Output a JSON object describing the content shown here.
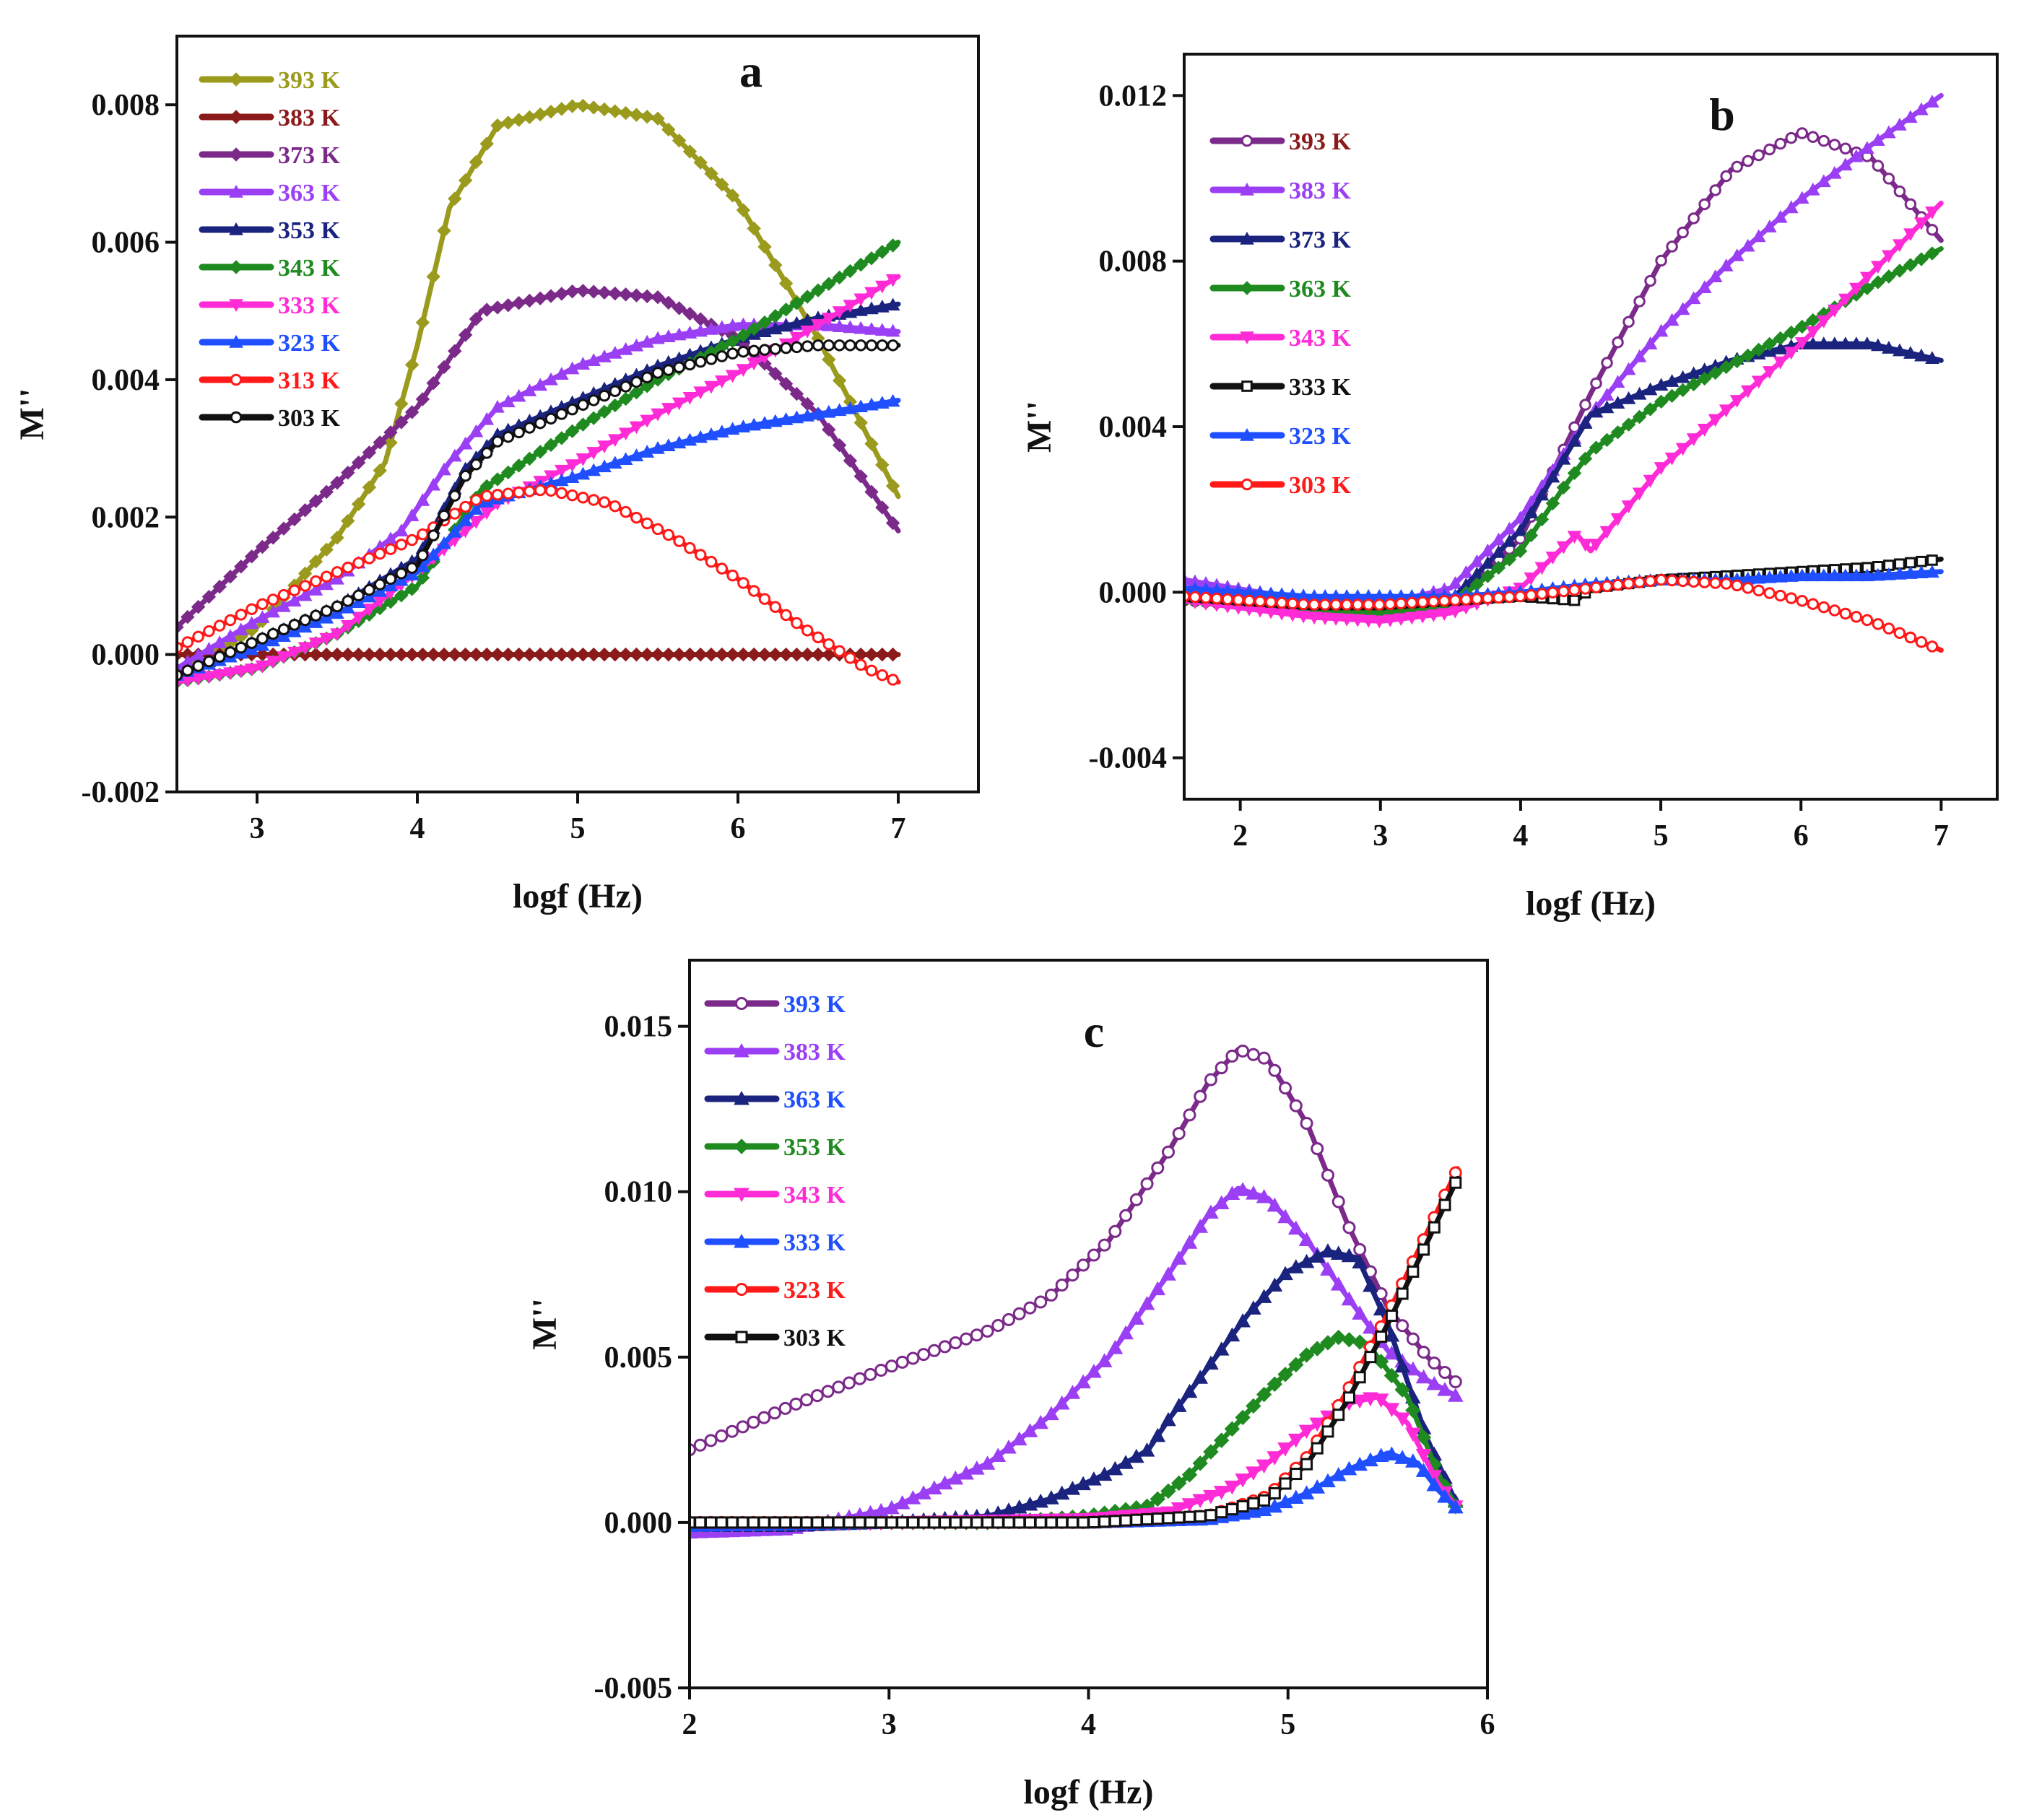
{
  "chart_data": [
    {
      "type": "line",
      "panel_label": "a",
      "xlabel": "logf (Hz)",
      "ylabel": "M''",
      "xlim": [
        2.5,
        7.5
      ],
      "ylim": [
        -0.002,
        0.009
      ],
      "x_ticks": [
        3,
        4,
        5,
        6,
        7
      ],
      "x_tick_labels": [
        "3",
        "4",
        "5",
        "6",
        "7"
      ],
      "y_ticks": [
        -0.002,
        0.0,
        0.002,
        0.004,
        0.006,
        0.008
      ],
      "y_tick_labels": [
        "-0.002",
        "0.000",
        "0.002",
        "0.004",
        "0.006",
        "0.008"
      ],
      "legend_position": "top-left",
      "series": [
        {
          "name": "393 K",
          "color": "#9a9a1c",
          "marker": "diamond",
          "x": [
            2.5,
            3.0,
            3.5,
            3.8,
            4.0,
            4.2,
            4.5,
            5.0,
            5.5,
            6.0,
            6.5,
            7.0
          ],
          "y": [
            -0.0003,
            0.0004,
            0.0017,
            0.0028,
            0.0045,
            0.0065,
            0.0077,
            0.008,
            0.0078,
            0.0066,
            0.0046,
            0.0023
          ]
        },
        {
          "name": "383 K",
          "color": "#8b1a1a",
          "marker": "diamond",
          "x": [
            2.5,
            3.0,
            4.0,
            5.0,
            6.0,
            7.0
          ],
          "y": [
            0.0,
            0.0,
            0.0,
            0.0,
            0.0,
            0.0
          ]
        },
        {
          "name": "373 K",
          "color": "#7b2a8a",
          "marker": "diamond",
          "x": [
            2.5,
            3.0,
            3.5,
            4.0,
            4.4,
            5.0,
            5.5,
            6.0,
            6.5,
            7.0
          ],
          "y": [
            0.0004,
            0.0015,
            0.0025,
            0.0036,
            0.005,
            0.0053,
            0.0052,
            0.0046,
            0.0035,
            0.0018
          ]
        },
        {
          "name": "363 K",
          "color": "#9b3ff5",
          "marker": "triangle",
          "x": [
            2.5,
            3.0,
            3.5,
            3.9,
            4.2,
            4.5,
            5.0,
            5.5,
            6.0,
            6.5,
            7.0
          ],
          "y": [
            -0.0002,
            0.0005,
            0.0011,
            0.0018,
            0.0028,
            0.0036,
            0.0042,
            0.0046,
            0.0048,
            0.0048,
            0.0047
          ]
        },
        {
          "name": "353 K",
          "color": "#1a237e",
          "marker": "triangle",
          "x": [
            2.5,
            3.0,
            3.5,
            4.0,
            4.3,
            4.5,
            5.0,
            5.5,
            6.0,
            6.5,
            7.0
          ],
          "y": [
            -0.0003,
            0.0002,
            0.0007,
            0.0014,
            0.0027,
            0.0032,
            0.0037,
            0.0042,
            0.0046,
            0.0049,
            0.0051
          ]
        },
        {
          "name": "343 K",
          "color": "#1f8a1f",
          "marker": "diamond",
          "x": [
            2.5,
            3.0,
            3.5,
            4.0,
            4.4,
            5.0,
            5.5,
            6.0,
            6.5,
            7.0
          ],
          "y": [
            -0.0004,
            -0.0002,
            0.0003,
            0.001,
            0.0024,
            0.0033,
            0.004,
            0.0046,
            0.0053,
            0.006
          ]
        },
        {
          "name": "333 K",
          "color": "#ff2bd6",
          "marker": "triangle-down",
          "x": [
            2.5,
            3.0,
            3.5,
            4.0,
            4.5,
            5.0,
            5.5,
            6.0,
            6.5,
            7.0
          ],
          "y": [
            -0.0004,
            -0.0002,
            0.0003,
            0.0012,
            0.0022,
            0.0028,
            0.0035,
            0.0041,
            0.0048,
            0.0055
          ]
        },
        {
          "name": "323 K",
          "color": "#1f4fff",
          "marker": "triangle",
          "x": [
            2.5,
            3.0,
            3.5,
            4.0,
            4.4,
            5.0,
            5.5,
            6.0,
            6.5,
            7.0
          ],
          "y": [
            -0.0003,
            0.0001,
            0.0006,
            0.0012,
            0.0022,
            0.0026,
            0.003,
            0.0033,
            0.0035,
            0.0037
          ]
        },
        {
          "name": "313 K",
          "color": "#ff1a1a",
          "marker": "circle",
          "x": [
            2.5,
            3.0,
            3.5,
            4.0,
            4.4,
            4.8,
            5.2,
            5.6,
            6.0,
            6.4,
            6.8,
            7.0
          ],
          "y": [
            0.0001,
            0.0007,
            0.0012,
            0.0017,
            0.0023,
            0.0024,
            0.0022,
            0.0017,
            0.0011,
            0.0004,
            -0.0002,
            -0.0004
          ]
        },
        {
          "name": "303 K",
          "color": "#111111",
          "marker": "circle",
          "x": [
            2.5,
            3.0,
            3.5,
            4.0,
            4.3,
            4.5,
            5.0,
            5.5,
            6.0,
            6.5,
            7.0
          ],
          "y": [
            -0.0003,
            0.0002,
            0.0007,
            0.0013,
            0.0026,
            0.0031,
            0.0036,
            0.0041,
            0.0044,
            0.0045,
            0.0045
          ]
        }
      ]
    },
    {
      "type": "line",
      "panel_label": "b",
      "xlabel": "logf (Hz)",
      "ylabel": "M''",
      "xlim": [
        1.6,
        7.4
      ],
      "ylim": [
        -0.005,
        0.013
      ],
      "x_ticks": [
        2,
        3,
        4,
        5,
        6,
        7
      ],
      "x_tick_labels": [
        "2",
        "3",
        "4",
        "5",
        "6",
        "7"
      ],
      "y_ticks": [
        -0.004,
        0.0,
        0.004,
        0.008,
        0.012
      ],
      "y_tick_labels": [
        "-0.004",
        "0.000",
        "0.004",
        "0.008",
        "0.012"
      ],
      "legend_position": "top-left",
      "series": [
        {
          "name": "393 K",
          "color": "#7b2a8a",
          "label_color": "#8b1a1a",
          "marker": "circle",
          "x": [
            1.6,
            2.5,
            3.0,
            3.5,
            4.0,
            4.5,
            5.0,
            5.5,
            6.0,
            6.5,
            7.0
          ],
          "y": [
            -0.0002,
            -0.0004,
            -0.0004,
            -0.0003,
            0.0013,
            0.0048,
            0.008,
            0.0102,
            0.0111,
            0.0105,
            0.0085
          ]
        },
        {
          "name": "383 K",
          "color": "#9b3ff5",
          "label_color": "#9b3ff5",
          "marker": "triangle",
          "x": [
            1.6,
            2.5,
            3.0,
            3.5,
            4.0,
            4.5,
            5.0,
            5.5,
            6.0,
            6.5,
            7.0
          ],
          "y": [
            0.0003,
            -0.0002,
            -0.0003,
            0.0001,
            0.0018,
            0.0043,
            0.0063,
            0.008,
            0.0095,
            0.0108,
            0.012
          ]
        },
        {
          "name": "373 K",
          "color": "#1a237e",
          "label_color": "#1a237e",
          "marker": "triangle",
          "x": [
            1.6,
            2.5,
            3.0,
            3.5,
            4.0,
            4.5,
            5.0,
            5.5,
            6.0,
            6.5,
            7.0
          ],
          "y": [
            -0.0001,
            -0.0004,
            -0.0004,
            -0.0002,
            0.0015,
            0.0043,
            0.005,
            0.0056,
            0.006,
            0.006,
            0.0056
          ]
        },
        {
          "name": "363 K",
          "color": "#1f8a1f",
          "label_color": "#1f8a1f",
          "marker": "diamond",
          "x": [
            1.6,
            2.5,
            3.0,
            3.5,
            4.0,
            4.3,
            4.5,
            5.0,
            5.5,
            6.0,
            6.5,
            7.0
          ],
          "y": [
            -0.0002,
            -0.0005,
            -0.0005,
            -0.0003,
            0.001,
            0.0025,
            0.0034,
            0.0046,
            0.0055,
            0.0064,
            0.0074,
            0.0083
          ]
        },
        {
          "name": "343 K",
          "color": "#ff2bd6",
          "label_color": "#ff2bd6",
          "marker": "triangle-down",
          "x": [
            1.6,
            2.5,
            3.0,
            3.5,
            4.0,
            4.4,
            4.5,
            5.0,
            5.5,
            6.0,
            6.5,
            7.0
          ],
          "y": [
            -0.0002,
            -0.0006,
            -0.0007,
            -0.0005,
            0.0001,
            0.0014,
            0.001,
            0.003,
            0.0045,
            0.006,
            0.0077,
            0.0094
          ]
        },
        {
          "name": "333 K",
          "color": "#111111",
          "label_color": "#111111",
          "marker": "square",
          "x": [
            1.6,
            2.5,
            3.0,
            3.5,
            4.0,
            4.4,
            4.5,
            5.0,
            5.5,
            6.0,
            6.5,
            7.0
          ],
          "y": [
            -0.0001,
            -0.0003,
            -0.0003,
            -0.0002,
            -0.0001,
            -0.0002,
            0.0001,
            0.0003,
            0.0004,
            0.0005,
            0.0006,
            0.0008
          ]
        },
        {
          "name": "323 K",
          "color": "#1f4fff",
          "label_color": "#1f4fff",
          "marker": "triangle",
          "x": [
            1.6,
            2.5,
            3.0,
            3.5,
            4.0,
            4.5,
            5.0,
            5.5,
            6.0,
            6.5,
            7.0
          ],
          "y": [
            0.0001,
            -0.0001,
            -0.0001,
            -0.0001,
            0.0,
            0.0002,
            0.0003,
            0.0003,
            0.0004,
            0.0004,
            0.0005
          ]
        },
        {
          "name": "303 K",
          "color": "#ff1a1a",
          "label_color": "#ff1a1a",
          "marker": "circle",
          "x": [
            1.6,
            2.5,
            3.0,
            3.5,
            4.0,
            4.5,
            5.0,
            5.5,
            6.0,
            6.5,
            7.0
          ],
          "y": [
            -0.0001,
            -0.0003,
            -0.0003,
            -0.0002,
            -0.0001,
            0.0001,
            0.0003,
            0.0002,
            -0.0002,
            -0.0007,
            -0.0014
          ]
        }
      ]
    },
    {
      "type": "line",
      "panel_label": "c",
      "xlabel": "logf (Hz)",
      "ylabel": "M''",
      "xlim": [
        2,
        6
      ],
      "ylim": [
        -0.005,
        0.017
      ],
      "x_ticks": [
        2,
        3,
        4,
        5,
        6
      ],
      "x_tick_labels": [
        "2",
        "3",
        "4",
        "5",
        "6"
      ],
      "y_ticks": [
        -0.005,
        0.0,
        0.005,
        0.01,
        0.015
      ],
      "y_tick_labels": [
        "-0.005",
        "0.000",
        "0.005",
        "0.010",
        "0.015"
      ],
      "legend_position": "top-left",
      "series": [
        {
          "name": "393 K",
          "color": "#7b2a8a",
          "label_color": "#1f4fff",
          "marker": "circle",
          "x": [
            2.0,
            2.5,
            3.0,
            3.5,
            3.8,
            4.1,
            4.4,
            4.6,
            4.75,
            4.9,
            5.1,
            5.3,
            5.5,
            5.7,
            5.85
          ],
          "y": [
            0.0022,
            0.0035,
            0.0047,
            0.0058,
            0.0068,
            0.0085,
            0.0112,
            0.0133,
            0.0143,
            0.014,
            0.012,
            0.009,
            0.0065,
            0.005,
            0.0042
          ]
        },
        {
          "name": "383 K",
          "color": "#9b3ff5",
          "label_color": "#9b3ff5",
          "marker": "triangle",
          "x": [
            2.0,
            2.5,
            3.0,
            3.5,
            3.8,
            4.1,
            4.4,
            4.6,
            4.75,
            4.9,
            5.1,
            5.3,
            5.5,
            5.7,
            5.85
          ],
          "y": [
            -0.0003,
            -0.0002,
            0.0004,
            0.0018,
            0.0032,
            0.005,
            0.0075,
            0.0093,
            0.0101,
            0.0098,
            0.0085,
            0.0068,
            0.0052,
            0.0043,
            0.0038
          ]
        },
        {
          "name": "363 K",
          "color": "#1a237e",
          "label_color": "#1f4fff",
          "marker": "triangle",
          "x": [
            2.0,
            2.5,
            3.0,
            3.5,
            3.8,
            4.1,
            4.3,
            4.4,
            4.6,
            4.8,
            5.0,
            5.2,
            5.35,
            5.5,
            5.7,
            5.85
          ],
          "y": [
            -0.0001,
            -0.0001,
            0.0,
            0.0002,
            0.0007,
            0.0015,
            0.0022,
            0.0031,
            0.0047,
            0.0063,
            0.0076,
            0.0082,
            0.008,
            0.006,
            0.0025,
            0.0005
          ]
        },
        {
          "name": "353 K",
          "color": "#1f8a1f",
          "label_color": "#1f8a1f",
          "marker": "diamond",
          "x": [
            2.0,
            3.0,
            3.5,
            3.8,
            4.0,
            4.3,
            4.5,
            4.7,
            4.9,
            5.1,
            5.25,
            5.4,
            5.6,
            5.75,
            5.85
          ],
          "y": [
            -0.0001,
            0.0,
            0.0,
            0.0001,
            0.0002,
            0.0005,
            0.0014,
            0.0027,
            0.004,
            0.0051,
            0.0056,
            0.0054,
            0.0038,
            0.0015,
            0.0004
          ]
        },
        {
          "name": "343 K",
          "color": "#ff2bd6",
          "label_color": "#ff2bd6",
          "marker": "triangle-down",
          "x": [
            2.0,
            3.0,
            4.0,
            4.4,
            4.7,
            4.9,
            5.1,
            5.3,
            5.45,
            5.6,
            5.75,
            5.85
          ],
          "y": [
            -0.0001,
            0.0,
            0.0001,
            0.0003,
            0.001,
            0.0018,
            0.0028,
            0.0036,
            0.0038,
            0.003,
            0.0012,
            0.0004
          ]
        },
        {
          "name": "333 K",
          "color": "#1f4fff",
          "label_color": "#1f4fff",
          "marker": "triangle",
          "x": [
            2.0,
            3.0,
            4.0,
            4.6,
            4.9,
            5.1,
            5.3,
            5.5,
            5.65,
            5.75,
            5.85
          ],
          "y": [
            -0.0001,
            0.0,
            0.0,
            0.0001,
            0.0004,
            0.0009,
            0.0016,
            0.0021,
            0.0018,
            0.001,
            0.0004
          ]
        },
        {
          "name": "323 K",
          "color": "#ff1a1a",
          "label_color": "#ff1a1a",
          "marker": "circle",
          "x": [
            2.0,
            3.0,
            4.0,
            4.6,
            4.9,
            5.1,
            5.3,
            5.5,
            5.7,
            5.85
          ],
          "y": [
            0.0,
            0.0,
            0.0,
            0.0002,
            0.0008,
            0.002,
            0.004,
            0.0063,
            0.0088,
            0.0107
          ]
        },
        {
          "name": "303 K",
          "color": "#111111",
          "label_color": "#111111",
          "marker": "square",
          "x": [
            2.0,
            3.0,
            4.0,
            4.6,
            4.9,
            5.1,
            5.3,
            5.5,
            5.7,
            5.85
          ],
          "y": [
            0.0,
            0.0,
            0.0,
            0.0002,
            0.0007,
            0.0018,
            0.0037,
            0.006,
            0.0085,
            0.0104
          ]
        }
      ]
    }
  ]
}
